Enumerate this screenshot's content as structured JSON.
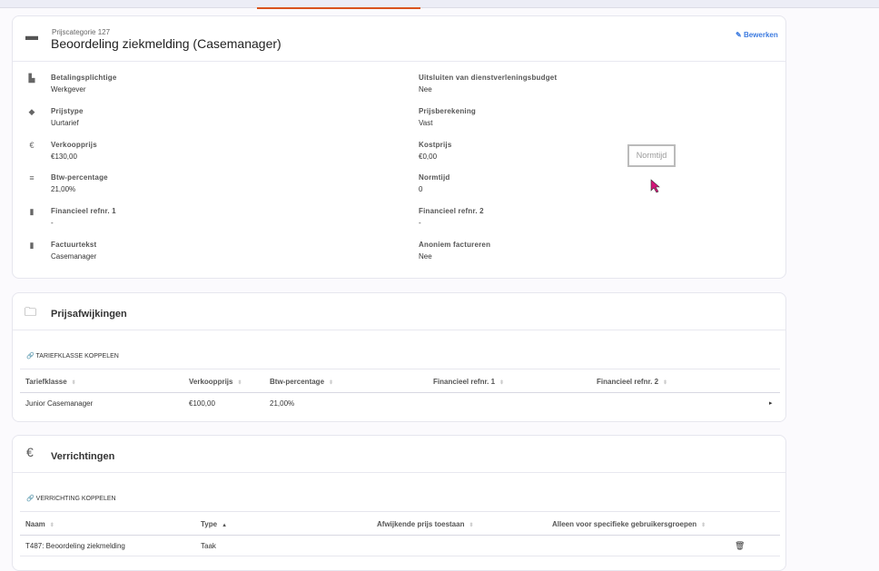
{
  "header": {
    "subtitle": "Prijscategorie 127",
    "title": "Beoordeling ziekmelding (Casemanager)",
    "edit_label": "Bewerken",
    "accent": "#3d7be0"
  },
  "details": {
    "left": [
      {
        "icon": "factory-icon",
        "label": "Betalingsplichtige",
        "value": "Werkgever"
      },
      {
        "icon": "tag-icon",
        "label": "Prijstype",
        "value": "Uurtarief"
      },
      {
        "icon": "euro-icon",
        "label": "Verkoopprijs",
        "value": "€130,00"
      },
      {
        "icon": "list-icon",
        "label": "Btw-percentage",
        "value": "21,00%"
      },
      {
        "icon": "document-icon",
        "label": "Financieel refnr. 1",
        "value": "-"
      },
      {
        "icon": "document-icon",
        "label": "Factuurtekst",
        "value": "Casemanager"
      }
    ],
    "right": [
      {
        "label": "Uitsluiten van dienstverleningsbudget",
        "value": "Nee"
      },
      {
        "label": "Prijsberekening",
        "value": "Vast"
      },
      {
        "label": "Kostprijs",
        "value": "€0,00"
      },
      {
        "label": "Normtijd",
        "value": "0"
      },
      {
        "label": "Financieel refnr. 2",
        "value": "-"
      },
      {
        "label": "Anoniem factureren",
        "value": "Nee"
      }
    ]
  },
  "tooltip": "Normtijd",
  "deviations": {
    "title": "Prijsafwijkingen",
    "link": "Tariefklasse koppelen",
    "columns": [
      "Tariefklasse",
      "Verkoopprijs",
      "Btw-percentage",
      "Financieel refnr. 1",
      "Financieel refnr. 2"
    ],
    "rows": [
      [
        "Junior Casemanager",
        "€100,00",
        "21,00%",
        "",
        ""
      ]
    ]
  },
  "actions": {
    "title": "Verrichtingen",
    "link": "Verrichting koppelen",
    "columns": [
      "Naam",
      "Type",
      "Afwijkende prijs toestaan",
      "Alleen voor specifieke gebruikersgroepen"
    ],
    "sort": {
      "column": "Type",
      "direction": "asc"
    },
    "rows": [
      [
        "T487: Beoordeling ziekmelding",
        "Taak",
        "",
        ""
      ]
    ]
  }
}
